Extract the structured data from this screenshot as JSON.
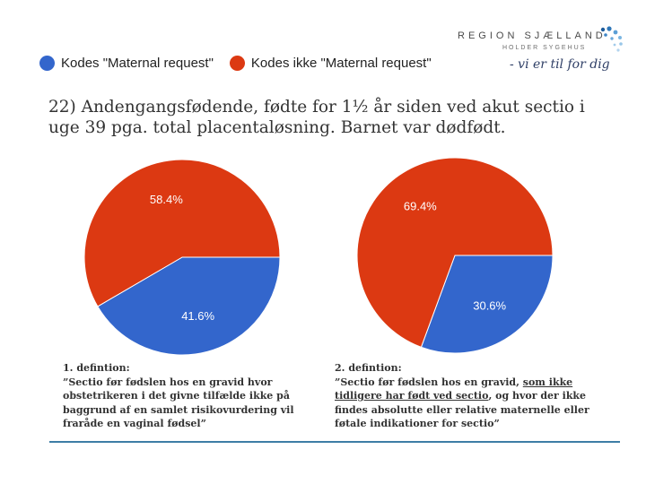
{
  "legend": [
    {
      "label": "Kodes \"Maternal request\"",
      "color": "#3366cc"
    },
    {
      "label": "Kodes ikke \"Maternal request\"",
      "color": "#dc3912"
    }
  ],
  "logo": {
    "brand": "REGION SJÆLLAND",
    "sub": "HOLDER SYGEHUS",
    "slogan": "- vi er til for dig"
  },
  "title": {
    "line1": "22) Andengangsfødende, fødte for 1½ år siden ved akut sectio i",
    "line2": "uge 39 pga. total placentaløsning. Barnet var dødfødt."
  },
  "chart_data": [
    {
      "type": "pie",
      "categories": [
        "Kodes \"Maternal request\"",
        "Kodes ikke \"Maternal request\""
      ],
      "values": [
        41.6,
        58.4
      ],
      "labels": [
        "41.6%",
        "58.4%"
      ],
      "colors": [
        "#3366cc",
        "#dc3912"
      ]
    },
    {
      "type": "pie",
      "categories": [
        "Kodes \"Maternal request\"",
        "Kodes ikke \"Maternal request\""
      ],
      "values": [
        30.6,
        69.4
      ],
      "labels": [
        "30.6%",
        "69.4%"
      ],
      "colors": [
        "#3366cc",
        "#dc3912"
      ]
    }
  ],
  "definitions": {
    "def1": {
      "heading": "1. defintion:",
      "lines": [
        "”Sectio før fødslen hos en gravid hvor",
        "obstetrikeren i det givne tilfælde ikke på",
        "baggrund af en samlet risikovurdering vil",
        "fraråde en vaginal fødsel”"
      ]
    },
    "def2": {
      "heading": "2. defintion:",
      "line1_plain": "”Sectio før fødslen hos en gravid, ",
      "line1_underlined": "som ikke",
      "line2_underlined": "tidligere har født ved sectio",
      "line2_plain": ", og hvor der ikke",
      "line3": "findes absolutte eller relative maternelle eller",
      "line4": "føtale indikationer for sectio”"
    }
  }
}
